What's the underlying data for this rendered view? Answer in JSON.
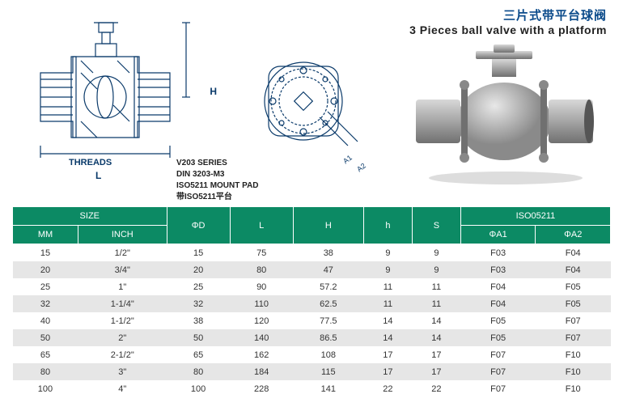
{
  "title": {
    "cn": "三片式带平台球阀",
    "en": "3 Pieces ball valve with a platform"
  },
  "labels": {
    "threads": "THREADS",
    "dim_h": "H",
    "dim_l": "L",
    "dim_a1": "A1",
    "dim_a2": "A2"
  },
  "series": {
    "line1": "V203 SERIES",
    "line2": "DIN 3203-M3",
    "line3": "ISO5211  MOUNT PAD",
    "line4": "带ISO5211平台"
  },
  "table": {
    "headers_top": {
      "size": "SIZE",
      "phi_d": "ΦD",
      "l": "L",
      "h_up": "H",
      "h_low": "h",
      "s": "S",
      "iso": "ISO05211"
    },
    "headers_sub": {
      "mm": "MM",
      "inch": "INCH",
      "a1": "ΦA1",
      "a2": "ΦA2"
    },
    "rows": [
      {
        "mm": "15",
        "inch": "1/2\"",
        "d": "15",
        "l": "75",
        "H": "38",
        "h": "9",
        "s": "9",
        "a1": "F03",
        "a2": "F04"
      },
      {
        "mm": "20",
        "inch": "3/4\"",
        "d": "20",
        "l": "80",
        "H": "47",
        "h": "9",
        "s": "9",
        "a1": "F03",
        "a2": "F04"
      },
      {
        "mm": "25",
        "inch": "1\"",
        "d": "25",
        "l": "90",
        "H": "57.2",
        "h": "11",
        "s": "11",
        "a1": "F04",
        "a2": "F05"
      },
      {
        "mm": "32",
        "inch": "1-1/4\"",
        "d": "32",
        "l": "110",
        "H": "62.5",
        "h": "11",
        "s": "11",
        "a1": "F04",
        "a2": "F05"
      },
      {
        "mm": "40",
        "inch": "1-1/2\"",
        "d": "38",
        "l": "120",
        "H": "77.5",
        "h": "14",
        "s": "14",
        "a1": "F05",
        "a2": "F07"
      },
      {
        "mm": "50",
        "inch": "2\"",
        "d": "50",
        "l": "140",
        "H": "86.5",
        "h": "14",
        "s": "14",
        "a1": "F05",
        "a2": "F07"
      },
      {
        "mm": "65",
        "inch": "2-1/2\"",
        "d": "65",
        "l": "162",
        "H": "108",
        "h": "17",
        "s": "17",
        "a1": "F07",
        "a2": "F10"
      },
      {
        "mm": "80",
        "inch": "3\"",
        "d": "80",
        "l": "184",
        "H": "115",
        "h": "17",
        "s": "17",
        "a1": "F07",
        "a2": "F10"
      },
      {
        "mm": "100",
        "inch": "4\"",
        "d": "100",
        "l": "228",
        "H": "141",
        "h": "22",
        "s": "22",
        "a1": "F07",
        "a2": "F10"
      }
    ]
  },
  "colors": {
    "header_bg": "#0c8a64",
    "row_alt": "#e6e6e6",
    "title_cn": "#0a4a8a",
    "stroke": "#0a3a6a"
  }
}
